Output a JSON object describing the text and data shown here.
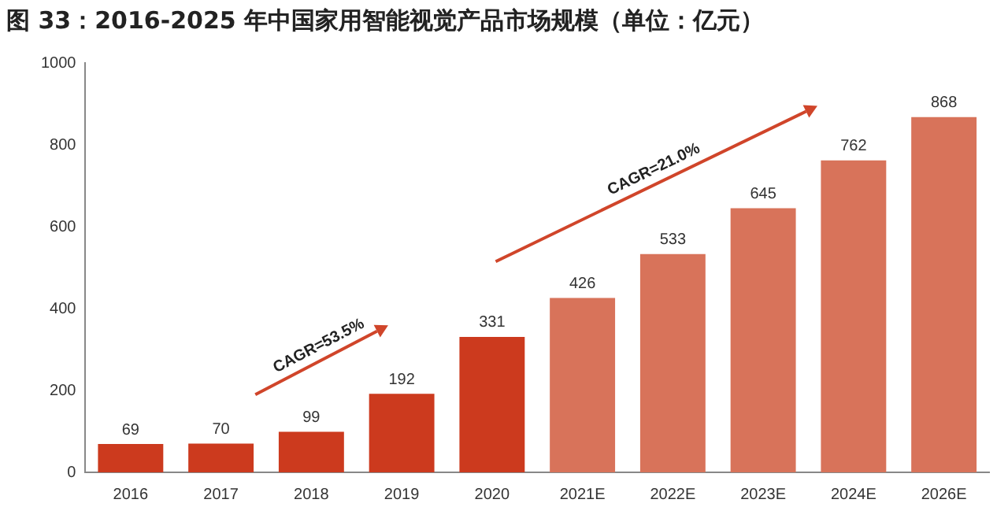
{
  "chart_data": {
    "type": "bar",
    "title": "图 33：2016-2025 年中国家用智能视觉产品市场规模（单位：亿元）",
    "categories": [
      "2016",
      "2017",
      "2018",
      "2019",
      "2020",
      "2021E",
      "2022E",
      "2023E",
      "2024E",
      "2026E"
    ],
    "values": [
      69,
      70,
      99,
      192,
      331,
      426,
      533,
      645,
      762,
      868
    ],
    "colors": [
      "#cc3a1e",
      "#cc3a1e",
      "#cc3a1e",
      "#cc3a1e",
      "#cc3a1e",
      "#d8735a",
      "#d8735a",
      "#d8735a",
      "#d8735a",
      "#d8735a"
    ],
    "ylim": [
      0,
      1000
    ],
    "yticks": [
      0,
      200,
      400,
      600,
      800,
      1000
    ],
    "grid": false,
    "legend": false,
    "data_labels": true,
    "annotations": [
      "CAGR=53.5%",
      "CAGR=21.0%"
    ]
  }
}
